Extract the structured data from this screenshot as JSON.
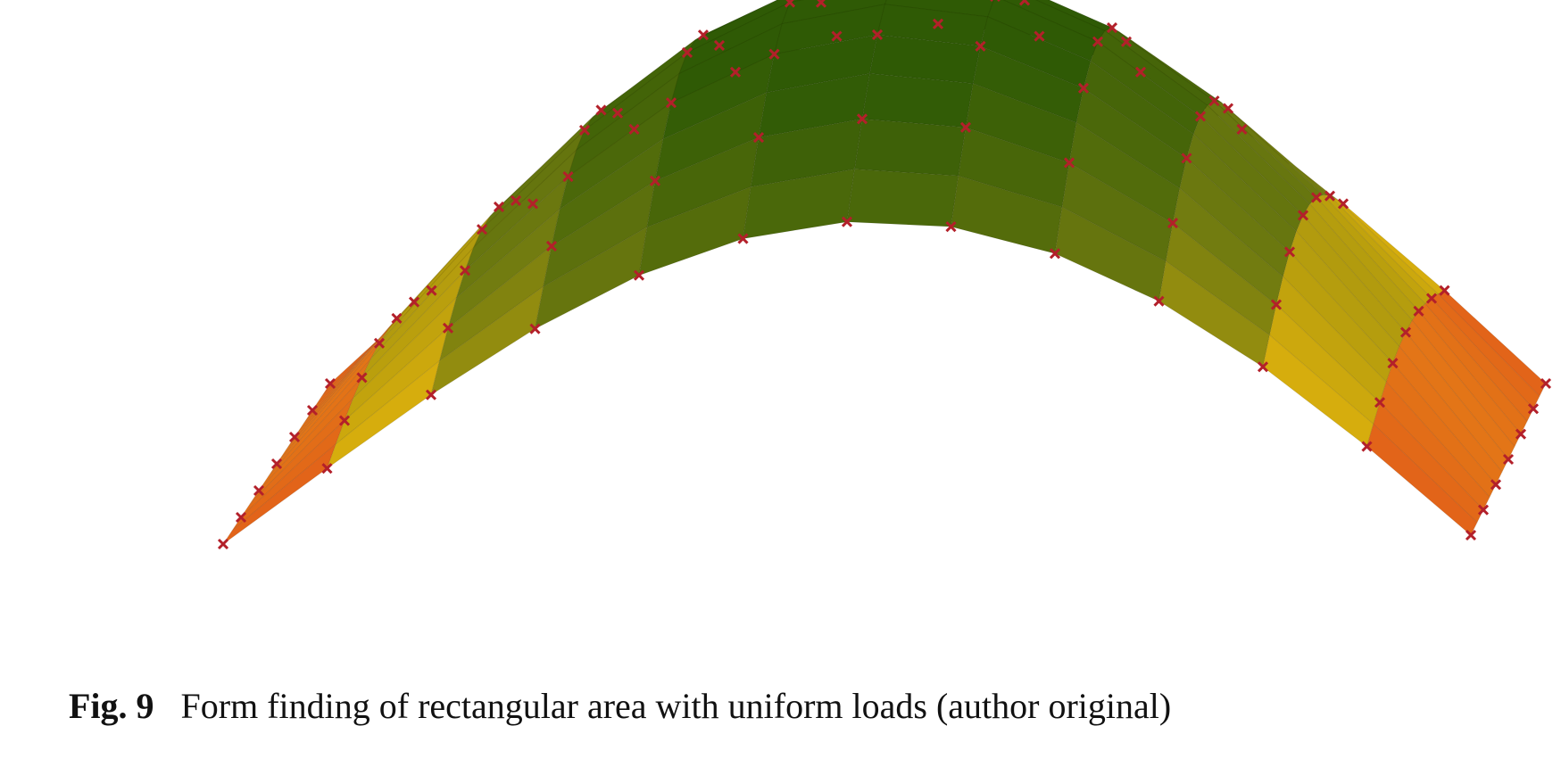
{
  "figure": {
    "label": "Fig. 9",
    "caption": "Form finding of rectangular area with uniform loads (author original)"
  },
  "render": {
    "surface_colors": {
      "crown": "#2f5a05",
      "mid": "#6f7a10",
      "low": "#e6b50c",
      "support": "#df2f22"
    },
    "node_marker_color": "#b3202a",
    "marker_icon": "x-mark-icon"
  }
}
